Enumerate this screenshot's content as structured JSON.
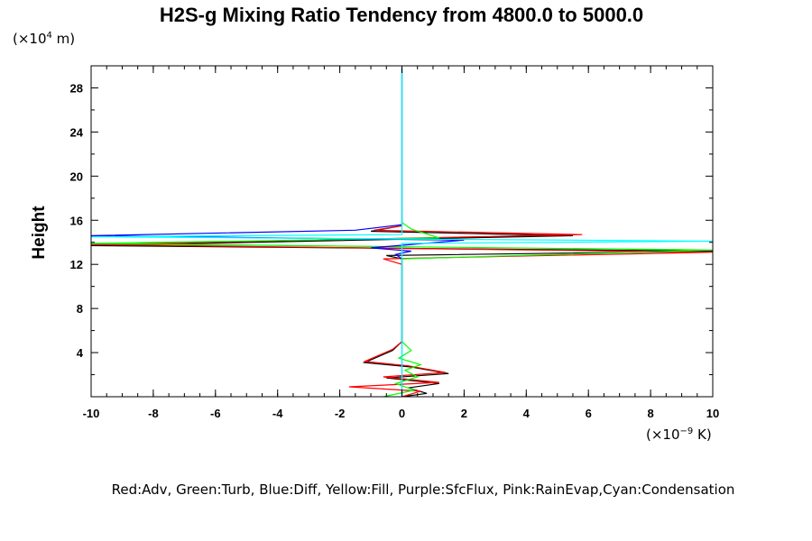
{
  "chart_data": {
    "type": "line",
    "title": "H2S-g Mixing Ratio Tendency from 4800.0 to 5000.0",
    "ylabel": "Height",
    "x_units_prefix": "(×10",
    "x_units_exp": "−9",
    "x_units_suffix": " K)",
    "y_units_prefix": "(×10",
    "y_units_exp": "4",
    "y_units_suffix": " m)",
    "xlim": [
      -10,
      10
    ],
    "ylim": [
      0,
      30
    ],
    "x_ticks": [
      -10,
      -8,
      -6,
      -4,
      -2,
      0,
      2,
      4,
      6,
      8,
      10
    ],
    "x_tick_labels": [
      "-10",
      "-8",
      "-6",
      "-4",
      "-2",
      "0",
      "2",
      "4",
      "6",
      "8",
      "10"
    ],
    "y_ticks": [
      4,
      8,
      12,
      16,
      20,
      24,
      28
    ],
    "y_tick_labels": [
      "4",
      "8",
      "12",
      "16",
      "20",
      "24",
      "28"
    ],
    "legend_text": "Red:Adv, Green:Turb, Blue:Diff, Yellow:Fill, Purple:SfcFlux, Pink:RainEvap,Cyan:Condensation",
    "series": [
      {
        "name": "Adv (black)",
        "color": "#000000",
        "x": [
          0.0,
          0.8,
          0.2,
          1.2,
          -0.5,
          1.5,
          0.3,
          -1.2,
          -0.3,
          0.0,
          0.0,
          0.0,
          0.0,
          0.0,
          -0.5,
          10.0,
          -10.0,
          5.5,
          -1.0,
          0.0,
          0.0,
          0.0
        ],
        "y": [
          0.0,
          0.3,
          0.8,
          1.2,
          1.7,
          2.1,
          2.7,
          3.1,
          4.2,
          5.0,
          7.0,
          11.0,
          12.0,
          12.5,
          12.8,
          13.2,
          13.7,
          14.6,
          15.0,
          15.5,
          16.0,
          29.8
        ]
      },
      {
        "name": "Adv (red)",
        "color": "#ff0000",
        "x": [
          0.0,
          0.6,
          -1.7,
          1.2,
          -0.6,
          1.4,
          0.2,
          -1.2,
          -0.3,
          0.0,
          0.0,
          -0.6,
          10.0,
          -10.0,
          5.8,
          -0.9,
          0.0
        ],
        "y": [
          0.0,
          0.5,
          0.9,
          1.3,
          1.8,
          2.2,
          2.8,
          3.2,
          4.3,
          5.0,
          12.0,
          12.5,
          13.1,
          13.8,
          14.7,
          15.1,
          15.5
        ]
      },
      {
        "name": "Turb",
        "color": "#00ff00",
        "x": [
          -0.6,
          0.4,
          -0.2,
          0.5,
          0.1,
          0.6,
          -0.1,
          0.3,
          0.0,
          0.0,
          0.0,
          0.0,
          10.0,
          -10.0,
          1.2,
          0.3,
          0.0
        ],
        "y": [
          0.0,
          0.6,
          1.2,
          1.8,
          2.4,
          2.9,
          3.5,
          4.2,
          5.0,
          7.0,
          12.0,
          12.5,
          13.3,
          13.9,
          14.4,
          15.2,
          15.8
        ]
      },
      {
        "name": "Diff",
        "color": "#0000ff",
        "x": [
          0.0,
          0.0,
          0.0,
          -0.2,
          0.3,
          -1.0,
          2.0,
          -10.0,
          -1.5,
          0.0,
          0.0
        ],
        "y": [
          0.0,
          12.0,
          12.5,
          12.9,
          13.2,
          13.5,
          14.2,
          14.6,
          15.1,
          15.6,
          29.8
        ]
      },
      {
        "name": "Condensation",
        "color": "#00ffff",
        "x": [
          0.0,
          0.0,
          0.0,
          10.0,
          -10.0,
          0.0,
          0.0
        ],
        "y": [
          0.0,
          13.4,
          13.9,
          14.1,
          14.5,
          14.7,
          30.0
        ]
      }
    ]
  }
}
